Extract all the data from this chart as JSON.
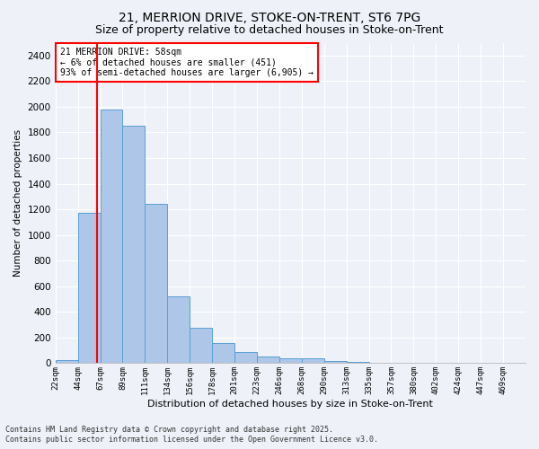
{
  "title1": "21, MERRION DRIVE, STOKE-ON-TRENT, ST6 7PG",
  "title2": "Size of property relative to detached houses in Stoke-on-Trent",
  "xlabel": "Distribution of detached houses by size in Stoke-on-Trent",
  "ylabel": "Number of detached properties",
  "bin_labels": [
    "22sqm",
    "44sqm",
    "67sqm",
    "89sqm",
    "111sqm",
    "134sqm",
    "156sqm",
    "178sqm",
    "201sqm",
    "223sqm",
    "246sqm",
    "268sqm",
    "290sqm",
    "313sqm",
    "335sqm",
    "357sqm",
    "380sqm",
    "402sqm",
    "424sqm",
    "447sqm",
    "469sqm"
  ],
  "bar_values": [
    25,
    1175,
    1975,
    1850,
    1245,
    520,
    275,
    155,
    85,
    50,
    35,
    35,
    20,
    10,
    5,
    3,
    2,
    1,
    1,
    1,
    5
  ],
  "bar_fill_color": "#aec6e8",
  "bar_edge_color": "#5a9fd4",
  "red_line_x": 1.85,
  "ylim": [
    0,
    2500
  ],
  "yticks": [
    0,
    200,
    400,
    600,
    800,
    1000,
    1200,
    1400,
    1600,
    1800,
    2000,
    2200,
    2400
  ],
  "annotation_title": "21 MERRION DRIVE: 58sqm",
  "annotation_line1": "← 6% of detached houses are smaller (451)",
  "annotation_line2": "93% of semi-detached houses are larger (6,905) →",
  "footnote1": "Contains HM Land Registry data © Crown copyright and database right 2025.",
  "footnote2": "Contains public sector information licensed under the Open Government Licence v3.0.",
  "bg_color": "#eef2f8",
  "grid_color": "#ffffff",
  "title1_fontsize": 10,
  "title2_fontsize": 9
}
